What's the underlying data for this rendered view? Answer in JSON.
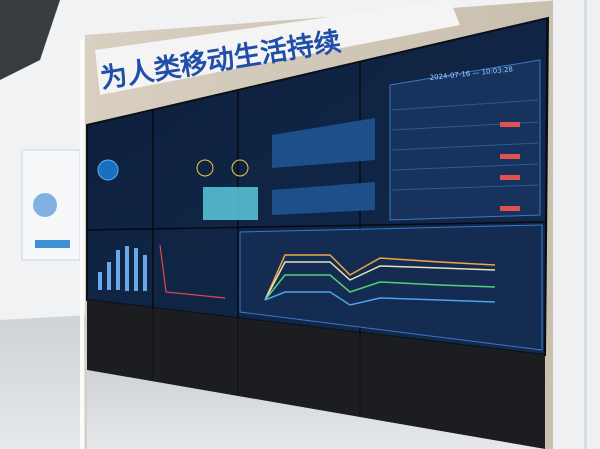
{
  "banner": {
    "text": "为人类移动生活持续"
  },
  "screen": {
    "datetime": "2024-07-16 — 10:03:28"
  }
}
